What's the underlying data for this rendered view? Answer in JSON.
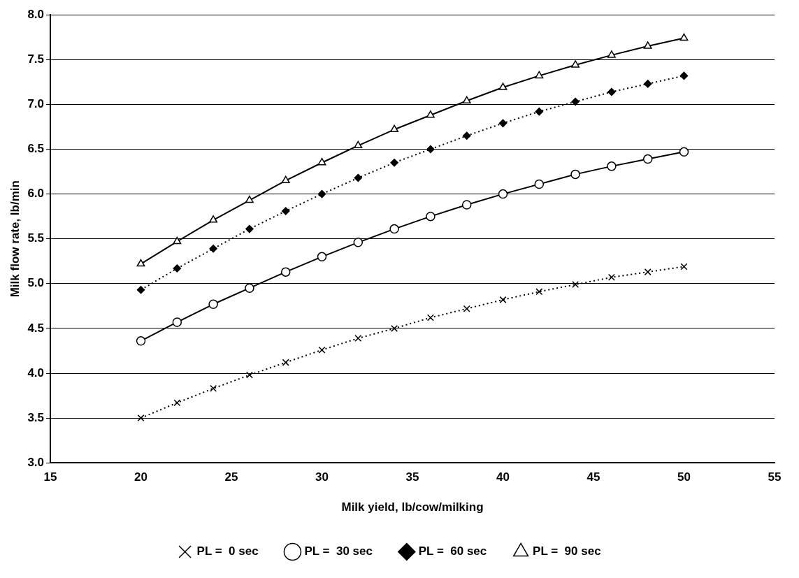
{
  "chart_data": {
    "type": "line",
    "xlabel": "Milk yield, lb/cow/milking",
    "ylabel": "Milk flow rate, lb/min",
    "x": [
      20,
      22,
      24,
      26,
      28,
      30,
      32,
      34,
      36,
      38,
      40,
      42,
      44,
      46,
      48,
      50
    ],
    "xlim": [
      15,
      55
    ],
    "xticks": [
      15,
      20,
      25,
      30,
      35,
      40,
      45,
      50,
      55
    ],
    "ylim": [
      3,
      8
    ],
    "yticks": [
      {
        "value": 3,
        "label": "3.0"
      },
      {
        "value": 3.5,
        "label": "3.5"
      },
      {
        "value": 4,
        "label": "4.0"
      },
      {
        "value": 4.5,
        "label": "4.5"
      },
      {
        "value": 5,
        "label": "5.0"
      },
      {
        "value": 5.5,
        "label": "5.5"
      },
      {
        "value": 6,
        "label": "6.0"
      },
      {
        "value": 6.5,
        "label": "6.5"
      },
      {
        "value": 7,
        "label": "7.0"
      },
      {
        "value": 7.5,
        "label": "7.5"
      },
      {
        "value": 8,
        "label": "8.0"
      }
    ],
    "grid": "y",
    "legend": "bottom",
    "series": [
      {
        "name": "PL =  0 sec",
        "color": "#000000",
        "marker": "cross",
        "line_style": "dotted",
        "values": [
          3.5,
          3.67,
          3.83,
          3.98,
          4.12,
          4.26,
          4.39,
          4.5,
          4.62,
          4.72,
          4.82,
          4.91,
          4.99,
          5.07,
          5.13,
          5.19
        ]
      },
      {
        "name": "PL =  30 sec",
        "color": "#000000",
        "marker": "circle",
        "line_style": "solid",
        "values": [
          4.36,
          4.57,
          4.77,
          4.95,
          5.13,
          5.3,
          5.46,
          5.61,
          5.75,
          5.88,
          6.0,
          6.11,
          6.22,
          6.31,
          6.39,
          6.47
        ]
      },
      {
        "name": "PL =  60 sec",
        "color": "#000000",
        "marker": "diamond",
        "line_style": "dotted",
        "values": [
          4.93,
          5.17,
          5.39,
          5.61,
          5.81,
          6.0,
          6.18,
          6.35,
          6.5,
          6.65,
          6.79,
          6.92,
          7.03,
          7.14,
          7.23,
          7.32
        ]
      },
      {
        "name": "PL =  90 sec",
        "color": "#000000",
        "marker": "triangle",
        "line_style": "solid",
        "values": [
          5.22,
          5.47,
          5.71,
          5.93,
          6.15,
          6.35,
          6.54,
          6.72,
          6.88,
          7.04,
          7.19,
          7.32,
          7.44,
          7.55,
          7.65,
          7.74
        ]
      }
    ]
  }
}
